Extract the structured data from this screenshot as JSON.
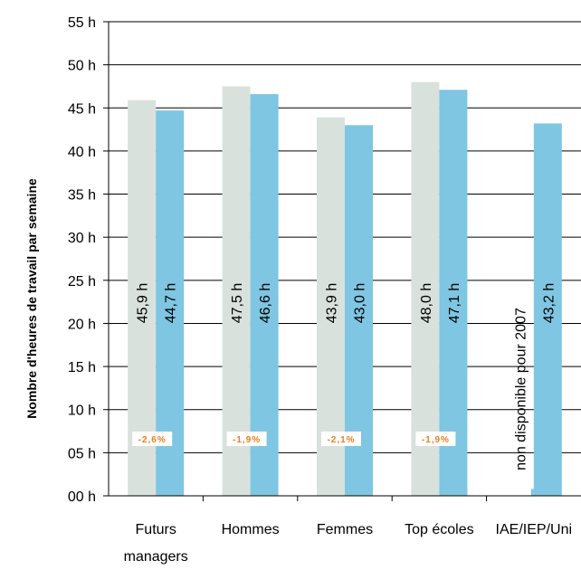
{
  "chart_data": {
    "type": "bar",
    "ylabel": "Nombre d'heures de travail par semaine",
    "ylim": [
      0,
      55
    ],
    "y_ticks": [
      "00 h",
      "05 h",
      "10 h",
      "15 h",
      "20 h",
      "25 h",
      "30 h",
      "35 h",
      "40 h",
      "45 h",
      "50 h",
      "55 h"
    ],
    "categories": [
      [
        "Futurs",
        "managers"
      ],
      [
        "Hommes"
      ],
      [
        "Femmes"
      ],
      [
        "Top écoles"
      ],
      [
        "IAE/IEP/Uni"
      ]
    ],
    "series": [
      {
        "color": "#d9e1dd",
        "values": [
          45.9,
          47.5,
          43.9,
          48.0,
          null
        ],
        "labels": [
          "45,9 h",
          "47,5 h",
          "43,9 h",
          "48,0 h",
          "non disponible pour 2007"
        ]
      },
      {
        "color": "#7ec6e2",
        "values": [
          44.7,
          46.6,
          43.0,
          47.1,
          43.2
        ],
        "labels": [
          "44,7 h",
          "46,6 h",
          "43,0 h",
          "47,1 h",
          "43,2 h"
        ]
      }
    ],
    "changes": [
      "-2,6%",
      "-1,9%",
      "-2,1%",
      "-1,9%"
    ],
    "grid": true,
    "legend": "none"
  }
}
